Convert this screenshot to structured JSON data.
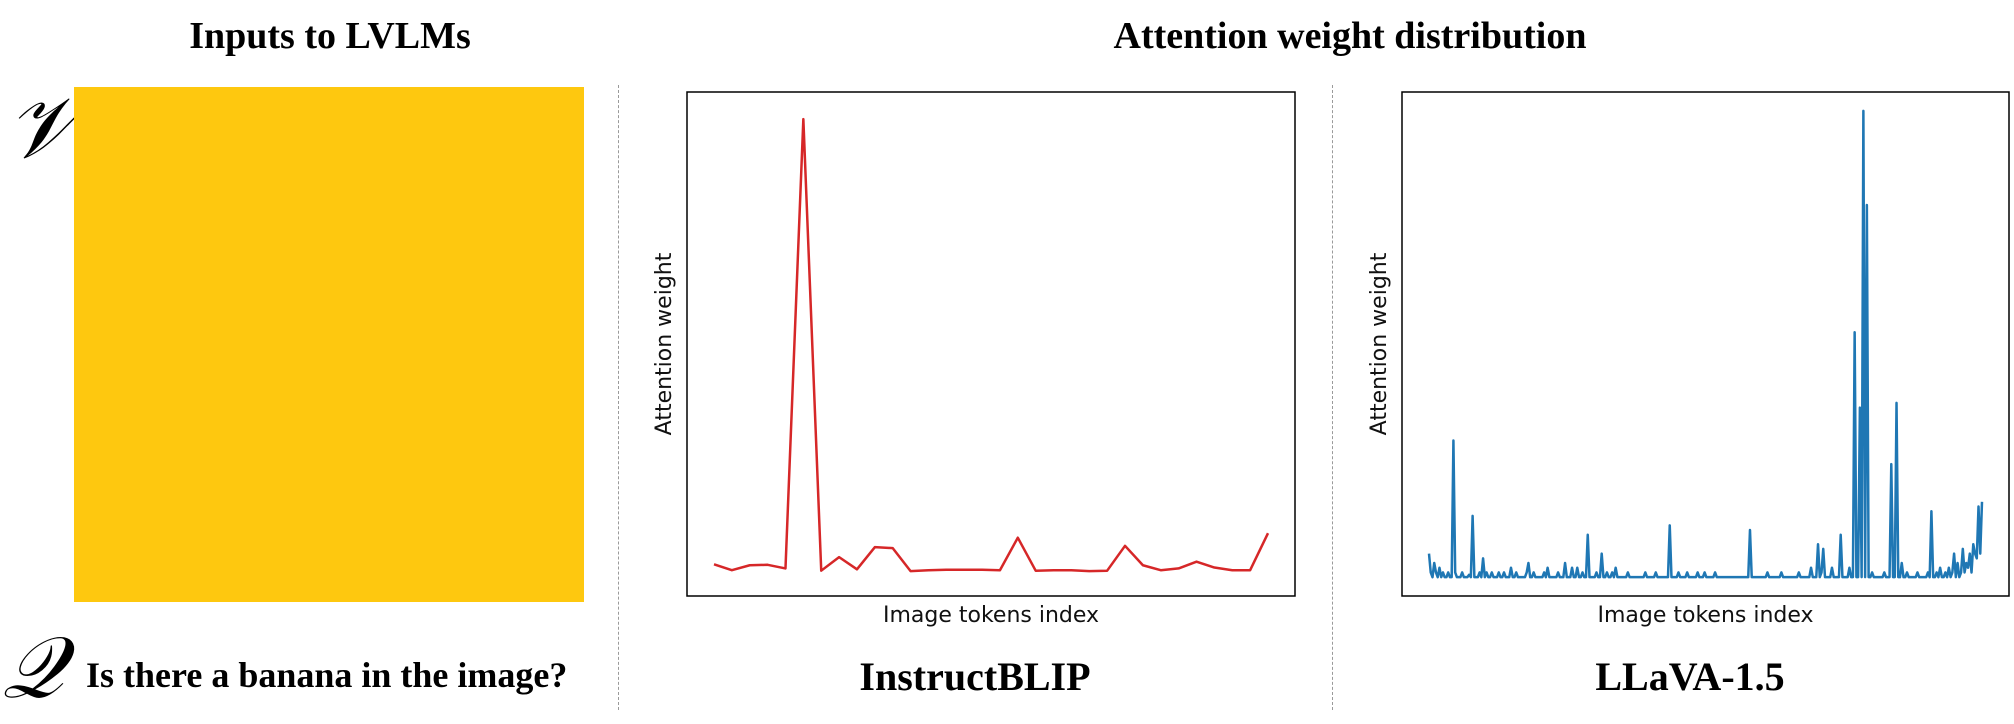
{
  "headings": {
    "inputs": "Inputs to LVLMs",
    "attention": "Attention weight distribution"
  },
  "symbols": {
    "v": "𝒱",
    "q": "𝒬"
  },
  "input_image_color": "#fec80f",
  "question": "Is there a banana in the image?",
  "models": [
    "InstructBLIP",
    "LLaVA-1.5"
  ],
  "chart_data": [
    {
      "type": "line",
      "title": "InstructBLIP",
      "xlabel": "Image tokens index",
      "ylabel": "Attention weight",
      "color": "#d62728",
      "x": [
        0,
        1,
        2,
        3,
        4,
        5,
        6,
        7,
        8,
        9,
        10,
        11,
        12,
        13,
        14,
        15,
        16,
        17,
        18,
        19,
        20,
        21,
        22,
        23,
        24,
        25,
        26,
        27,
        28,
        29,
        30,
        31
      ],
      "values": [
        0.015,
        0.002,
        0.013,
        0.014,
        0.006,
        1.0,
        0.001,
        0.031,
        0.004,
        0.053,
        0.051,
        0.0,
        0.002,
        0.003,
        0.003,
        0.003,
        0.002,
        0.074,
        0.001,
        0.002,
        0.002,
        0.0,
        0.001,
        0.056,
        0.013,
        0.002,
        0.006,
        0.021,
        0.008,
        0.002,
        0.002,
        0.084
      ],
      "ylim": [
        -0.055,
        1.06
      ]
    },
    {
      "type": "line",
      "title": "LLaVA-1.5",
      "xlabel": "Image tokens index",
      "ylabel": "Attention weight",
      "color": "#1f77b4",
      "values": [
        0.06,
        0.02,
        0.01,
        0.04,
        0.02,
        0.01,
        0.03,
        0.01,
        0.02,
        0.01,
        0.01,
        0.02,
        0.01,
        0.01,
        0.3,
        0.02,
        0.01,
        0.01,
        0.01,
        0.02,
        0.01,
        0.01,
        0.01,
        0.015,
        0.01,
        0.14,
        0.01,
        0.01,
        0.01,
        0.02,
        0.01,
        0.05,
        0.01,
        0.02,
        0.01,
        0.01,
        0.02,
        0.01,
        0.01,
        0.01,
        0.02,
        0.01,
        0.01,
        0.02,
        0.01,
        0.01,
        0.01,
        0.03,
        0.01,
        0.01,
        0.02,
        0.01,
        0.01,
        0.01,
        0.01,
        0.01,
        0.02,
        0.04,
        0.01,
        0.01,
        0.02,
        0.01,
        0.01,
        0.01,
        0.01,
        0.01,
        0.02,
        0.01,
        0.03,
        0.01,
        0.01,
        0.01,
        0.01,
        0.01,
        0.02,
        0.01,
        0.01,
        0.01,
        0.04,
        0.01,
        0.01,
        0.01,
        0.03,
        0.01,
        0.01,
        0.03,
        0.01,
        0.01,
        0.02,
        0.01,
        0.01,
        0.1,
        0.01,
        0.01,
        0.01,
        0.01,
        0.02,
        0.01,
        0.01,
        0.06,
        0.01,
        0.01,
        0.02,
        0.01,
        0.01,
        0.02,
        0.01,
        0.03,
        0.01,
        0.01,
        0.01,
        0.01,
        0.01,
        0.01,
        0.02,
        0.01,
        0.01,
        0.01,
        0.01,
        0.01,
        0.01,
        0.01,
        0.01,
        0.01,
        0.02,
        0.01,
        0.01,
        0.01,
        0.01,
        0.01,
        0.02,
        0.01,
        0.01,
        0.01,
        0.01,
        0.01,
        0.01,
        0.01,
        0.12,
        0.01,
        0.01,
        0.01,
        0.01,
        0.02,
        0.01,
        0.01,
        0.01,
        0.01,
        0.02,
        0.01,
        0.01,
        0.01,
        0.01,
        0.01,
        0.02,
        0.01,
        0.01,
        0.01,
        0.02,
        0.01,
        0.01,
        0.01,
        0.01,
        0.01,
        0.02,
        0.01,
        0.01,
        0.01,
        0.01,
        0.01,
        0.01,
        0.01,
        0.01,
        0.01,
        0.01,
        0.01,
        0.01,
        0.01,
        0.01,
        0.01,
        0.01,
        0.01,
        0.01,
        0.01,
        0.11,
        0.01,
        0.01,
        0.01,
        0.01,
        0.01,
        0.01,
        0.01,
        0.01,
        0.01,
        0.02,
        0.01,
        0.01,
        0.01,
        0.01,
        0.01,
        0.01,
        0.01,
        0.02,
        0.01,
        0.01,
        0.01,
        0.01,
        0.01,
        0.01,
        0.01,
        0.01,
        0.01,
        0.02,
        0.01,
        0.01,
        0.01,
        0.01,
        0.01,
        0.01,
        0.03,
        0.01,
        0.01,
        0.01,
        0.08,
        0.01,
        0.02,
        0.07,
        0.01,
        0.01,
        0.01,
        0.01,
        0.03,
        0.01,
        0.01,
        0.01,
        0.01,
        0.1,
        0.01,
        0.01,
        0.01,
        0.01,
        0.03,
        0.01,
        0.01,
        0.53,
        0.01,
        0.01,
        0.37,
        0.01,
        1.0,
        0.01,
        0.8,
        0.01,
        0.01,
        0.02,
        0.01,
        0.01,
        0.01,
        0.01,
        0.01,
        0.01,
        0.02,
        0.01,
        0.01,
        0.01,
        0.25,
        0.01,
        0.01,
        0.38,
        0.01,
        0.01,
        0.04,
        0.01,
        0.01,
        0.02,
        0.01,
        0.01,
        0.01,
        0.01,
        0.01,
        0.02,
        0.01,
        0.01,
        0.01,
        0.01,
        0.01,
        0.02,
        0.01,
        0.15,
        0.01,
        0.01,
        0.02,
        0.01,
        0.03,
        0.01,
        0.01,
        0.02,
        0.01,
        0.03,
        0.01,
        0.02,
        0.06,
        0.01,
        0.04,
        0.01,
        0.02,
        0.07,
        0.02,
        0.04,
        0.03,
        0.06,
        0.02,
        0.08,
        0.06,
        0.05,
        0.16,
        0.06,
        0.17
      ],
      "ylim": [
        -0.03,
        1.04
      ]
    }
  ]
}
